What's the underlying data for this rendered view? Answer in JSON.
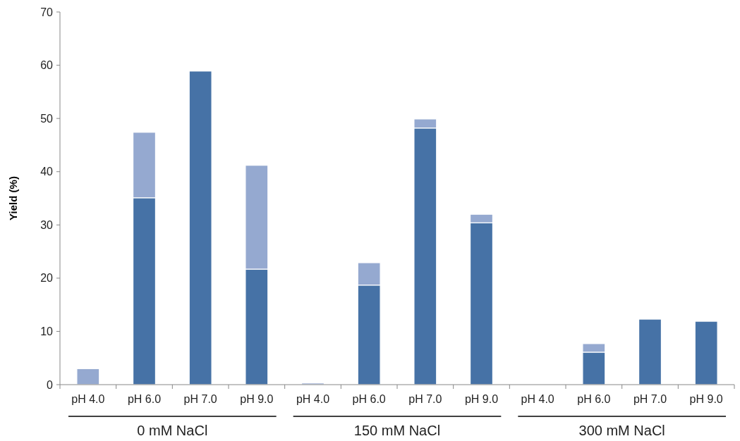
{
  "chart_data": {
    "type": "bar",
    "ylabel": "Yield (%)",
    "stacked": true,
    "categories": [
      "pH 4.0",
      "pH 6.0",
      "pH 7.0",
      "pH 9.0",
      "pH 4.0",
      "pH 6.0",
      "pH 7.0",
      "pH 9.0",
      "pH 4.0",
      "pH 6.0",
      "pH 7.0",
      "pH 9.0"
    ],
    "series": [
      {
        "color": "#4672a6",
        "values": [
          0,
          35.1,
          58.9,
          21.7,
          0,
          18.7,
          48.2,
          30.4,
          0,
          6.1,
          12.3,
          11.9
        ]
      },
      {
        "color": "#95a9d0",
        "values": [
          3.0,
          12.3,
          0,
          19.5,
          0.3,
          4.2,
          1.7,
          1.6,
          null,
          1.6,
          0,
          0
        ]
      }
    ],
    "annotations": [
      "0 mM NaCl",
      "150 mM NaCl",
      "300 mM NaCl"
    ],
    "ylim": [
      0,
      70
    ],
    "yticks": [
      0,
      10,
      20,
      30,
      40,
      50,
      60,
      70
    ],
    "grid": false
  }
}
